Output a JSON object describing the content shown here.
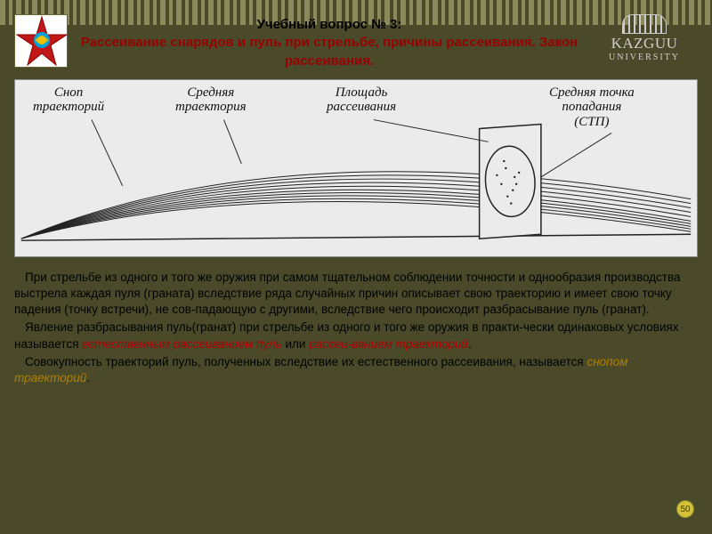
{
  "header": {
    "title_line1": "Учебный вопрос № 3:",
    "subtitle": "Рассеивание снарядов и пуль при стрельбе, причины рассеивания. Закон рассеивания."
  },
  "logo": {
    "name": "KAZGUU",
    "sub": "UNIVERSITY"
  },
  "diagram": {
    "labels": {
      "bundle": "Сноп\nтраекторий",
      "mean": "Средняя\nтраектория",
      "area": "Площадь\nрассеивания",
      "stp": "Средняя точка\nпопадания\n(СТП)"
    },
    "trajectory_count": 10,
    "colors": {
      "bg": "#ebebeb",
      "stroke": "#222222"
    }
  },
  "body": {
    "p1": "При стрельбе из одного и того же оружия при самом тщательном соблюдении точности и однообразия производства выстрела каждая пуля (граната) вследствие ряда случайных причин описывает свою траекторию и имеет свою точку падения (точку встречи), не сов-падающую с другими, вследствие чего происходит разбрасывание пуль (гранат).",
    "p2_a": "Явление разбрасывания пуль(гранат) при стрельбе из одного и того же оружия в практи-чески  одинаковых условиях называется ",
    "p2_em1": "естественным рассеиванием пуль",
    "p2_b": " или ",
    "p2_em2": "рассеи-ванием траекторий",
    "p2_c": ".",
    "p3_a": "Совокупность траекторий пуль, полученных вследствие их естественного рассеивания, называется ",
    "p3_em1": "снопом траекторий",
    "p3_b": "."
  },
  "page_number": "50",
  "colors": {
    "title_red": "#990000",
    "text_black": "#000000"
  }
}
